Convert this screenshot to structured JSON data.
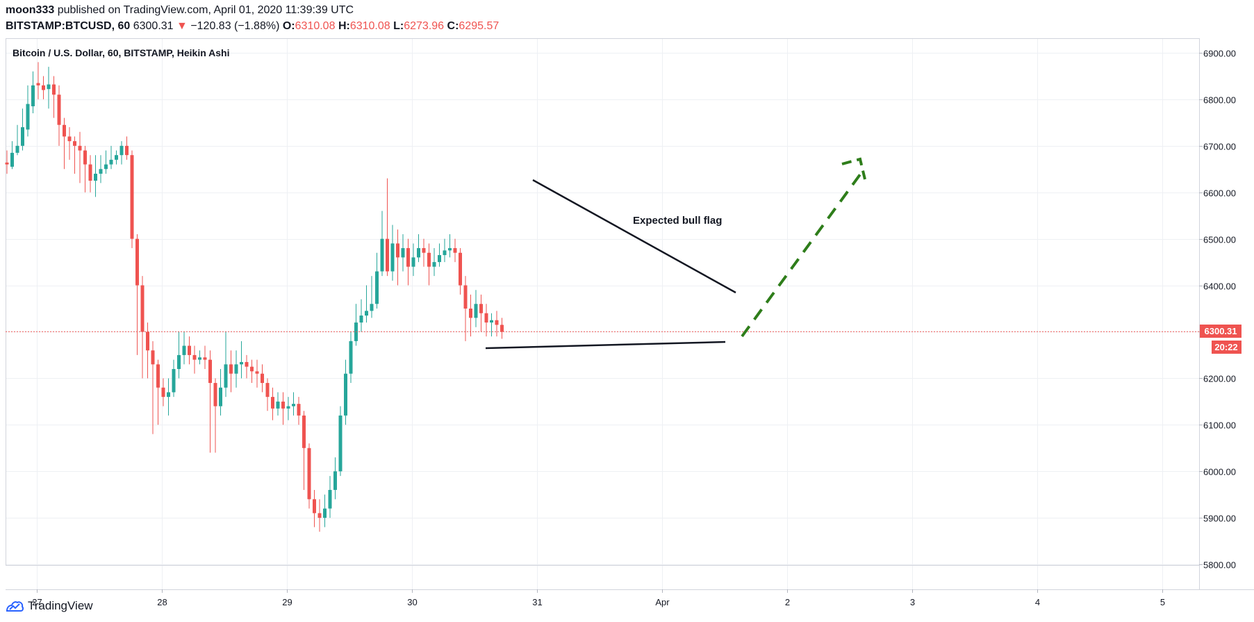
{
  "header": {
    "author": "moon333",
    "published_text": "published on TradingView.com, April 01, 2020 11:39:39 UTC",
    "symbol": "BITSTAMP:BTCUSD, 60",
    "last": "6300.31",
    "change": "−120.83 (−1.88%)",
    "o_label": "O:",
    "o_value": "6310.08",
    "h_label": "H:",
    "h_value": "6310.08",
    "l_label": "L:",
    "l_value": "6273.96",
    "c_label": "C:",
    "c_value": "6295.57"
  },
  "chart_data": {
    "type": "candlestick",
    "title": "Bitcoin / U.S. Dollar, 60, BITSTAMP, Heikin Ashi",
    "x_tick_labels": [
      "27",
      "28",
      "29",
      "30",
      "31",
      "Apr",
      "2",
      "3",
      "4",
      "5"
    ],
    "y_tick_labels": [
      "6900.00",
      "6800.00",
      "6700.00",
      "6600.00",
      "6500.00",
      "6400.00",
      "6300.00",
      "6200.00",
      "6100.00",
      "6000.00",
      "5900.00",
      "5800.00"
    ],
    "ylim": [
      5800,
      6900
    ],
    "grid": true,
    "up_color": "#26a69a",
    "down_color": "#ef5350",
    "candles": [
      [
        6664,
        6660,
        6690,
        6640
      ],
      [
        6655,
        6685,
        6710,
        6650
      ],
      [
        6685,
        6700,
        6745,
        6680
      ],
      [
        6700,
        6740,
        6780,
        6690
      ],
      [
        6735,
        6790,
        6830,
        6720
      ],
      [
        6785,
        6830,
        6860,
        6770
      ],
      [
        6835,
        6830,
        6880,
        6800
      ],
      [
        6830,
        6820,
        6850,
        6800
      ],
      [
        6822,
        6832,
        6870,
        6780
      ],
      [
        6832,
        6810,
        6850,
        6760
      ],
      [
        6810,
        6745,
        6830,
        6700
      ],
      [
        6745,
        6720,
        6760,
        6650
      ],
      [
        6720,
        6710,
        6740,
        6670
      ],
      [
        6710,
        6700,
        6720,
        6640
      ],
      [
        6700,
        6690,
        6730,
        6620
      ],
      [
        6690,
        6660,
        6700,
        6600
      ],
      [
        6660,
        6625,
        6680,
        6600
      ],
      [
        6625,
        6640,
        6680,
        6590
      ],
      [
        6640,
        6650,
        6680,
        6620
      ],
      [
        6650,
        6660,
        6690,
        6640
      ],
      [
        6660,
        6670,
        6700,
        6650
      ],
      [
        6670,
        6680,
        6690,
        6660
      ],
      [
        6680,
        6700,
        6710,
        6660
      ],
      [
        6700,
        6680,
        6720,
        6670
      ],
      [
        6680,
        6500,
        6690,
        6480
      ],
      [
        6500,
        6400,
        6510,
        6250
      ],
      [
        6400,
        6300,
        6420,
        6200
      ],
      [
        6300,
        6260,
        6320,
        6200
      ],
      [
        6260,
        6230,
        6280,
        6080
      ],
      [
        6230,
        6180,
        6240,
        6100
      ],
      [
        6180,
        6160,
        6200,
        6140
      ],
      [
        6160,
        6170,
        6200,
        6120
      ],
      [
        6170,
        6220,
        6240,
        6160
      ],
      [
        6220,
        6250,
        6300,
        6200
      ],
      [
        6250,
        6270,
        6300,
        6230
      ],
      [
        6270,
        6250,
        6290,
        6230
      ],
      [
        6250,
        6240,
        6270,
        6210
      ],
      [
        6240,
        6245,
        6260,
        6230
      ],
      [
        6245,
        6240,
        6270,
        6220
      ],
      [
        6240,
        6190,
        6260,
        6040
      ],
      [
        6190,
        6140,
        6200,
        6040
      ],
      [
        6140,
        6180,
        6220,
        6120
      ],
      [
        6180,
        6230,
        6300,
        6160
      ],
      [
        6230,
        6210,
        6260,
        6170
      ],
      [
        6210,
        6230,
        6260,
        6180
      ],
      [
        6230,
        6235,
        6280,
        6200
      ],
      [
        6235,
        6225,
        6250,
        6200
      ],
      [
        6225,
        6215,
        6240,
        6190
      ],
      [
        6215,
        6210,
        6240,
        6180
      ],
      [
        6210,
        6190,
        6230,
        6170
      ],
      [
        6190,
        6160,
        6200,
        6130
      ],
      [
        6160,
        6135,
        6180,
        6110
      ],
      [
        6135,
        6150,
        6170,
        6120
      ],
      [
        6150,
        6135,
        6170,
        6100
      ],
      [
        6135,
        6140,
        6160,
        6110
      ],
      [
        6140,
        6145,
        6170,
        6120
      ],
      [
        6145,
        6120,
        6160,
        6100
      ],
      [
        6120,
        6050,
        6130,
        5960
      ],
      [
        6050,
        5940,
        6060,
        5920
      ],
      [
        5940,
        5910,
        5960,
        5880
      ],
      [
        5910,
        5900,
        5940,
        5870
      ],
      [
        5900,
        5920,
        5950,
        5880
      ],
      [
        5920,
        5960,
        5990,
        5900
      ],
      [
        5960,
        6000,
        6030,
        5940
      ],
      [
        6000,
        6120,
        6140,
        5990
      ],
      [
        6120,
        6210,
        6240,
        6100
      ],
      [
        6210,
        6280,
        6300,
        6190
      ],
      [
        6280,
        6320,
        6360,
        6270
      ],
      [
        6320,
        6335,
        6370,
        6300
      ],
      [
        6335,
        6345,
        6400,
        6320
      ],
      [
        6345,
        6360,
        6420,
        6330
      ],
      [
        6360,
        6430,
        6470,
        6350
      ],
      [
        6430,
        6500,
        6560,
        6420
      ],
      [
        6500,
        6430,
        6630,
        6420
      ],
      [
        6430,
        6490,
        6530,
        6410
      ],
      [
        6490,
        6460,
        6520,
        6400
      ],
      [
        6460,
        6480,
        6510,
        6430
      ],
      [
        6480,
        6440,
        6500,
        6400
      ],
      [
        6440,
        6460,
        6490,
        6420
      ],
      [
        6460,
        6480,
        6510,
        6450
      ],
      [
        6480,
        6470,
        6500,
        6440
      ],
      [
        6470,
        6440,
        6490,
        6400
      ],
      [
        6440,
        6450,
        6480,
        6420
      ],
      [
        6450,
        6465,
        6490,
        6440
      ],
      [
        6465,
        6475,
        6500,
        6450
      ],
      [
        6475,
        6480,
        6510,
        6460
      ],
      [
        6480,
        6470,
        6500,
        6450
      ],
      [
        6470,
        6400,
        6480,
        6380
      ],
      [
        6400,
        6350,
        6420,
        6280
      ],
      [
        6350,
        6330,
        6380,
        6290
      ],
      [
        6330,
        6360,
        6390,
        6310
      ],
      [
        6360,
        6340,
        6380,
        6300
      ],
      [
        6340,
        6320,
        6360,
        6290
      ],
      [
        6320,
        6325,
        6340,
        6290
      ],
      [
        6325,
        6315,
        6345,
        6290
      ],
      [
        6315,
        6300,
        6330,
        6285
      ]
    ],
    "last_price_label": "6300.31",
    "countdown_label": "20:22",
    "annotation": "Expected bull flag"
  },
  "footer": {
    "brand": "TradingView"
  },
  "colors": {
    "accent_red": "#ef5350",
    "teal": "#26a69a",
    "arrow_green": "#2e7d1a",
    "grid": "#e0e3eb"
  }
}
